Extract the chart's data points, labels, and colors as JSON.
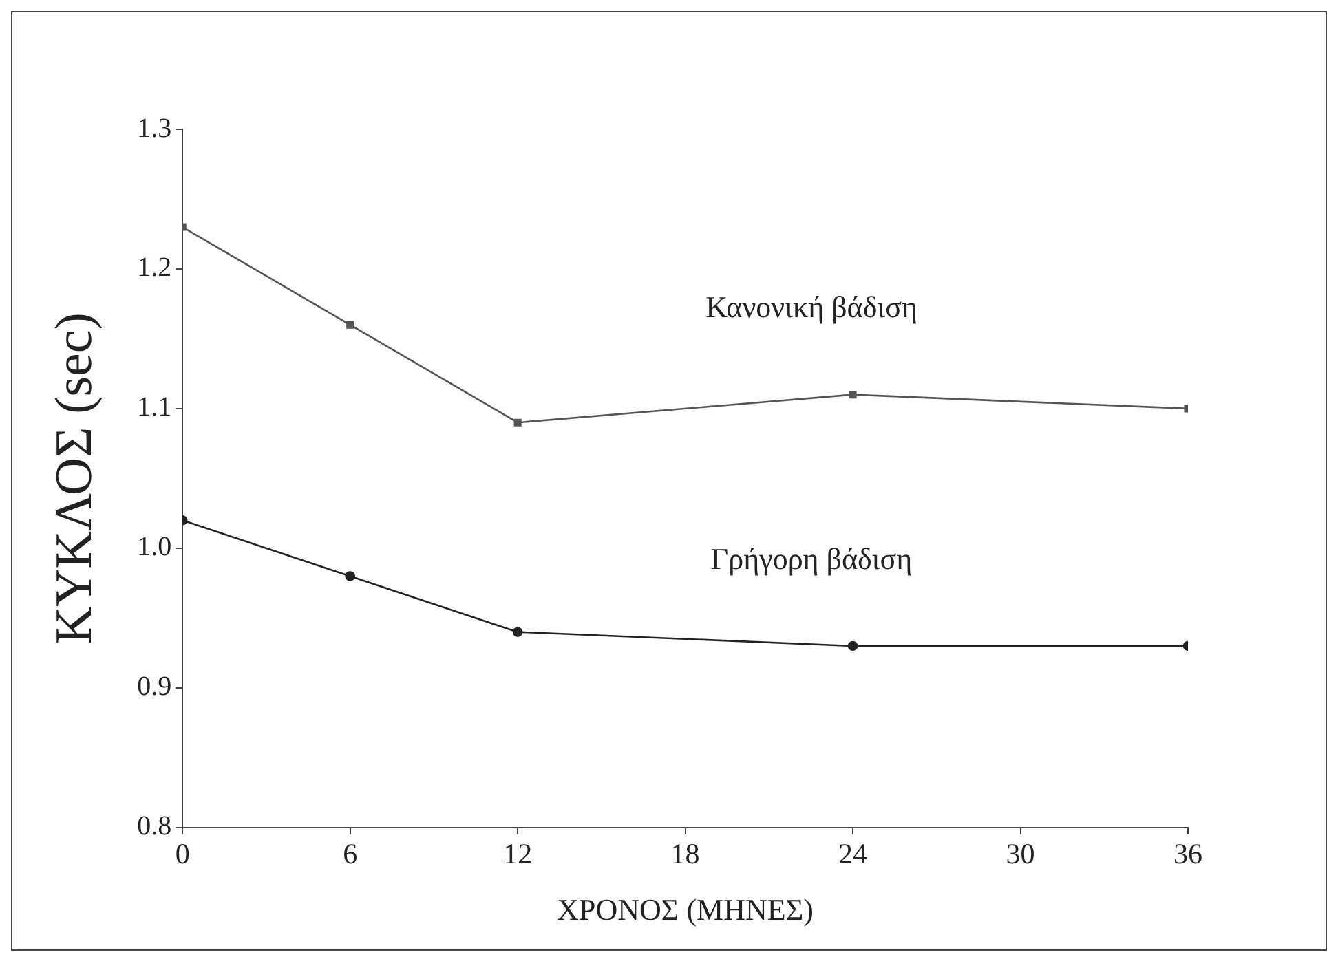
{
  "chart_data": {
    "type": "line",
    "xlabel": "ΧΡΟΝΟΣ (ΜΗΝΕΣ)",
    "ylabel": "ΚΥΚΛΟΣ (sec)",
    "x": [
      0,
      6,
      12,
      24,
      36
    ],
    "series": [
      {
        "name": "Κανονική βάδιση",
        "color": "#555555",
        "marker": "square",
        "values": [
          1.23,
          1.16,
          1.09,
          1.11,
          1.1
        ]
      },
      {
        "name": "Γρήγορη βάδιση",
        "color": "#222222",
        "marker": "circle",
        "values": [
          1.02,
          0.98,
          0.94,
          0.93,
          0.93
        ]
      }
    ],
    "xlim": [
      0,
      36
    ],
    "xticks": [
      0,
      6,
      12,
      18,
      24,
      30,
      36
    ],
    "ylim": [
      0.8,
      1.3
    ],
    "yticks": [
      {
        "value": 0.8,
        "label": "0.8"
      },
      {
        "value": 0.9,
        "label": "0.9"
      },
      {
        "value": 1.0,
        "label": "1.0"
      },
      {
        "value": 1.1,
        "label": "1.1"
      },
      {
        "value": 1.2,
        "label": "1.2"
      },
      {
        "value": 1.3,
        "label": "1.3"
      }
    ],
    "grid": false,
    "legend": false,
    "line_style": "solid"
  }
}
